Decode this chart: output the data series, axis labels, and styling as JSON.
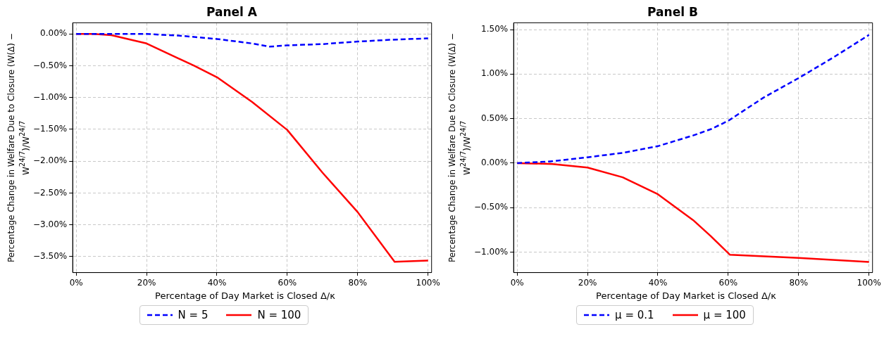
{
  "chart_data": [
    {
      "type": "line",
      "title": "Panel A",
      "xlabel": "Percentage of Day Market is Closed Δ/κ",
      "ylabel": "Percentage Change in Welfare Due to Closure (W(Δ) − W$^{24/7}$)/W$^{24/7}$",
      "xlim": [
        -1,
        101
      ],
      "xticks": [
        {
          "value": 0,
          "label": "0%"
        },
        {
          "value": 20,
          "label": "20%"
        },
        {
          "value": 40,
          "label": "40%"
        },
        {
          "value": 60,
          "label": "60%"
        },
        {
          "value": 80,
          "label": "80%"
        },
        {
          "value": 100,
          "label": "100%"
        }
      ],
      "ylim": [
        -3.75,
        0.175
      ],
      "yticks": [
        {
          "value": 0,
          "label": "0.00%"
        },
        {
          "value": -0.5,
          "label": "−0.50%"
        },
        {
          "value": -1,
          "label": "−1.00%"
        },
        {
          "value": -1.5,
          "label": "−1.50%"
        },
        {
          "value": -2,
          "label": "−2.00%"
        },
        {
          "value": -2.5,
          "label": "−2.50%"
        },
        {
          "value": -3,
          "label": "−3.00%"
        },
        {
          "value": -3.5,
          "label": "−3.50%"
        }
      ],
      "grid": true,
      "legend": "bottom",
      "marker": "none",
      "series": [
        {
          "name": "N = 5",
          "color": "#0000ff",
          "line_style": "dashed",
          "x": [
            0,
            10,
            20,
            30,
            40,
            50,
            55,
            60,
            70,
            80,
            90,
            100
          ],
          "values": [
            0,
            0,
            0,
            -0.03,
            -0.08,
            -0.15,
            -0.2,
            -0.18,
            -0.16,
            -0.12,
            -0.09,
            -0.07
          ]
        },
        {
          "name": "N = 100",
          "color": "#ff0000",
          "line_style": "solid",
          "x": [
            0,
            5,
            10,
            20,
            33.5,
            40,
            50,
            60,
            70,
            80,
            90.5,
            100
          ],
          "values": [
            0,
            0,
            -0.02,
            -0.15,
            -0.5,
            -0.68,
            -1.07,
            -1.51,
            -2.18,
            -2.8,
            -3.58,
            -3.56
          ]
        }
      ]
    },
    {
      "type": "line",
      "title": "Panel B",
      "xlabel": "Percentage of Day Market is Closed Δ/κ",
      "ylabel": "Percentage Change in Welfare Due to Closure (W(Δ) − W$^{24/7}$)/W$^{24/7}$",
      "xlim": [
        -1,
        101
      ],
      "xticks": [
        {
          "value": 0,
          "label": "0%"
        },
        {
          "value": 20,
          "label": "20%"
        },
        {
          "value": 40,
          "label": "40%"
        },
        {
          "value": 60,
          "label": "60%"
        },
        {
          "value": 80,
          "label": "80%"
        },
        {
          "value": 100,
          "label": "100%"
        }
      ],
      "ylim": [
        -1.23,
        1.576
      ],
      "yticks": [
        {
          "value": 1.5,
          "label": "1.50%"
        },
        {
          "value": 1,
          "label": "1.00%"
        },
        {
          "value": 0.5,
          "label": "0.50%"
        },
        {
          "value": 0,
          "label": "0.00%"
        },
        {
          "value": -0.5,
          "label": "−0.50%"
        },
        {
          "value": -1,
          "label": "−1.00%"
        }
      ],
      "grid": true,
      "legend": "bottom",
      "marker": "none",
      "series": [
        {
          "name": "μ = 0.1",
          "color": "#0000ff",
          "line_style": "dashed",
          "x": [
            0,
            10,
            20,
            30,
            40,
            50,
            55,
            60,
            70,
            80,
            90,
            100
          ],
          "values": [
            0,
            0.02,
            0.065,
            0.115,
            0.19,
            0.31,
            0.38,
            0.475,
            0.735,
            0.955,
            1.19,
            1.44
          ]
        },
        {
          "name": "μ = 100",
          "color": "#ff0000",
          "line_style": "solid",
          "x": [
            0,
            10,
            20,
            30,
            40,
            50,
            55,
            60.5,
            80,
            100
          ],
          "values": [
            0,
            -0.01,
            -0.05,
            -0.16,
            -0.35,
            -0.64,
            -0.82,
            -1.03,
            -1.065,
            -1.11
          ]
        }
      ]
    }
  ]
}
